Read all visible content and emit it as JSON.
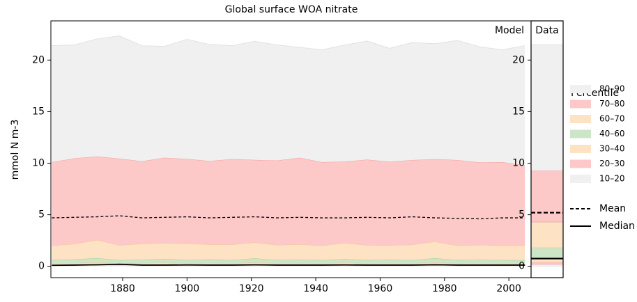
{
  "chart_data": [
    {
      "type": "area",
      "title": "Global surface WOA nitrate",
      "panel_label": "Model",
      "ylabel": "mmol N m-3",
      "legend_title": "Percentile",
      "x": [
        1858,
        1865,
        1872,
        1879,
        1886,
        1893,
        1900,
        1907,
        1914,
        1921,
        1928,
        1935,
        1942,
        1949,
        1956,
        1963,
        1970,
        1977,
        1984,
        1991,
        1998,
        2005
      ],
      "xlim": [
        1857.7,
        2006.9
      ],
      "xticks": [
        1880,
        1900,
        1920,
        1940,
        1960,
        1980,
        2000
      ],
      "ylim": [
        -1.1,
        23.8
      ],
      "yticks": [
        0,
        5,
        10,
        15,
        20
      ],
      "series": [
        {
          "name": "10–20",
          "color": "#f0f0f0",
          "edge": "#e2e2e2",
          "values": [
            0.05,
            0.05,
            0.06,
            0.05,
            0.05,
            0.06,
            0.05,
            0.05,
            0.05,
            0.06,
            0.05,
            0.05,
            0.05,
            0.06,
            0.05,
            0.05,
            0.05,
            0.06,
            0.05,
            0.05,
            0.05,
            0.05
          ]
        },
        {
          "name": "20–30",
          "color": "#fcc8c8",
          "edge": "#f4a0a0",
          "values": [
            0.1,
            0.1,
            0.12,
            0.1,
            0.1,
            0.11,
            0.1,
            0.1,
            0.1,
            0.12,
            0.1,
            0.1,
            0.1,
            0.11,
            0.1,
            0.1,
            0.1,
            0.12,
            0.1,
            0.1,
            0.1,
            0.1
          ]
        },
        {
          "name": "30–40",
          "color": "#fde3c4",
          "edge": "#f5c89a",
          "values": [
            0.15,
            0.17,
            0.2,
            0.15,
            0.16,
            0.18,
            0.15,
            0.17,
            0.15,
            0.19,
            0.15,
            0.16,
            0.15,
            0.18,
            0.15,
            0.16,
            0.15,
            0.2,
            0.15,
            0.16,
            0.15,
            0.15
          ]
        },
        {
          "name": "40–60",
          "color": "#cce5c6",
          "edge": "#a6d09c",
          "values": [
            0.3,
            0.35,
            0.42,
            0.3,
            0.33,
            0.38,
            0.31,
            0.34,
            0.3,
            0.4,
            0.31,
            0.32,
            0.3,
            0.36,
            0.3,
            0.33,
            0.3,
            0.41,
            0.3,
            0.32,
            0.3,
            0.3
          ]
        },
        {
          "name": "60–70",
          "color": "#fde3c4",
          "edge": "#f5c89a",
          "values": [
            1.4,
            1.5,
            1.75,
            1.45,
            1.55,
            1.5,
            1.6,
            1.45,
            1.5,
            1.55,
            1.45,
            1.5,
            1.4,
            1.55,
            1.45,
            1.4,
            1.5,
            1.6,
            1.4,
            1.45,
            1.4,
            1.4
          ]
        },
        {
          "name": "70–80",
          "color": "#fcc8c8",
          "edge": "#f4a0a0",
          "values": [
            8.1,
            8.3,
            8.1,
            8.4,
            8.0,
            8.3,
            8.2,
            8.1,
            8.3,
            8.0,
            8.2,
            8.4,
            8.1,
            7.9,
            8.3,
            8.1,
            8.2,
            8.0,
            8.3,
            8.0,
            8.1,
            7.8
          ]
        },
        {
          "name": "80–90",
          "color": "#f0f0f0",
          "edge": "#e2e2e2",
          "values": [
            11.3,
            11.0,
            11.4,
            11.9,
            11.2,
            10.8,
            11.6,
            11.3,
            11.0,
            11.5,
            11.2,
            10.7,
            10.9,
            11.3,
            11.5,
            11.0,
            11.4,
            11.2,
            11.6,
            11.2,
            10.9,
            11.6
          ]
        }
      ],
      "lines": [
        {
          "name": "Mean",
          "color": "#000000",
          "dashed": true,
          "values": [
            4.7,
            4.75,
            4.8,
            4.9,
            4.7,
            4.75,
            4.8,
            4.7,
            4.75,
            4.8,
            4.7,
            4.75,
            4.7,
            4.7,
            4.75,
            4.7,
            4.8,
            4.7,
            4.65,
            4.6,
            4.7,
            4.7
          ]
        },
        {
          "name": "Median",
          "color": "#000000",
          "dashed": false,
          "values": [
            0.1,
            0.12,
            0.15,
            0.2,
            0.12,
            0.12,
            0.13,
            0.12,
            0.12,
            0.14,
            0.12,
            0.12,
            0.12,
            0.13,
            0.12,
            0.12,
            0.12,
            0.15,
            0.12,
            0.12,
            0.12,
            0.12
          ]
        }
      ]
    },
    {
      "type": "stacked-bar",
      "panel_label": "Data",
      "ylim": [
        -1.1,
        23.8
      ],
      "yticks": [
        0,
        5,
        10,
        15,
        20
      ],
      "values": [
        0.2,
        0.2,
        0.3,
        1.1,
        2.5,
        5.0,
        12.2
      ],
      "line_values": [
        5.2,
        0.75
      ]
    }
  ]
}
